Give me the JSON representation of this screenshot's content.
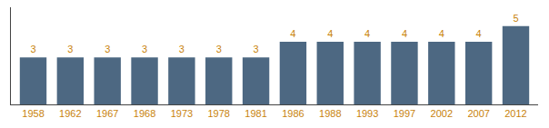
{
  "chart_data": {
    "type": "bar",
    "categories": [
      "1958",
      "1962",
      "1967",
      "1968",
      "1973",
      "1978",
      "1981",
      "1986",
      "1988",
      "1993",
      "1997",
      "2002",
      "2007",
      "2012"
    ],
    "values": [
      3,
      3,
      3,
      3,
      3,
      3,
      3,
      4,
      4,
      4,
      4,
      4,
      4,
      5
    ],
    "color": "#4d6882",
    "ylim": [
      0,
      6.2
    ],
    "data_labels": true,
    "tick_labels": "x",
    "grid": false
  }
}
